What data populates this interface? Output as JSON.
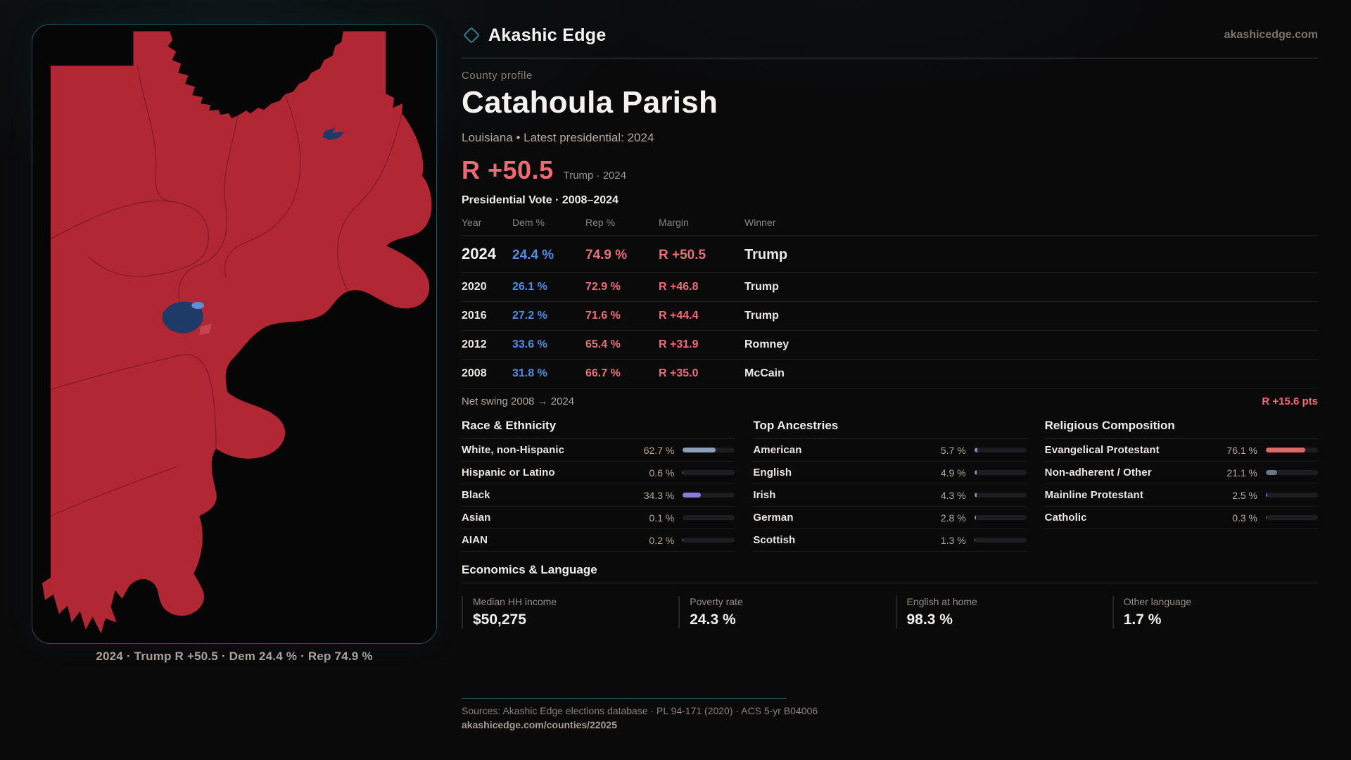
{
  "brand": {
    "name": "Akashic Edge",
    "domain": "akashicedge.com"
  },
  "map": {
    "caption": "2024 · Trump R +50.5 · Dem 24.4 % · Rep 74.9 %"
  },
  "profile": {
    "eyebrow": "County profile",
    "title": "Catahoula Parish",
    "subtitle": "Louisiana • Latest presidential: 2024",
    "headline_margin": "R +50.5",
    "headline_context": "Trump · 2024",
    "table_title": "Presidential Vote · 2008–2024"
  },
  "vote_table": {
    "columns": [
      "Year",
      "Dem %",
      "Rep %",
      "Margin",
      "Winner"
    ],
    "rows": [
      {
        "year": "2024",
        "dem": "24.4 %",
        "rep": "74.9 %",
        "margin": "R +50.5",
        "winner": "Trump",
        "latest": true
      },
      {
        "year": "2020",
        "dem": "26.1 %",
        "rep": "72.9 %",
        "margin": "R +46.8",
        "winner": "Trump",
        "latest": false
      },
      {
        "year": "2016",
        "dem": "27.2 %",
        "rep": "71.6 %",
        "margin": "R +44.4",
        "winner": "Trump",
        "latest": false
      },
      {
        "year": "2012",
        "dem": "33.6 %",
        "rep": "65.4 %",
        "margin": "R +31.9",
        "winner": "Romney",
        "latest": false
      },
      {
        "year": "2008",
        "dem": "31.8 %",
        "rep": "66.7 %",
        "margin": "R +35.0",
        "winner": "McCain",
        "latest": false
      }
    ]
  },
  "net_swing": {
    "label": "Net swing 2008 → 2024",
    "value": "R +15.6 pts"
  },
  "sections": [
    {
      "title": "Race & Ethnicity",
      "rows": [
        {
          "label": "White, non-Hispanic",
          "value": "62.7 %",
          "pct": 62.7,
          "bar_color": "#8ba0b8"
        },
        {
          "label": "Hispanic or Latino",
          "value": "0.6 %",
          "pct": 0.6,
          "bar_color": "#8ba0b8"
        },
        {
          "label": "Black",
          "value": "34.3 %",
          "pct": 34.3,
          "bar_color": "#8b7ae0"
        },
        {
          "label": "Asian",
          "value": "0.1 %",
          "pct": 0.1,
          "bar_color": "#8ba0b8"
        },
        {
          "label": "AIAN",
          "value": "0.2 %",
          "pct": 0.2,
          "bar_color": "#8ba0b8"
        }
      ]
    },
    {
      "title": "Top Ancestries",
      "rows": [
        {
          "label": "American",
          "value": "5.7 %",
          "pct": 5.7,
          "bar_color": "#7d95b4"
        },
        {
          "label": "English",
          "value": "4.9 %",
          "pct": 4.9,
          "bar_color": "#7d95b4"
        },
        {
          "label": "Irish",
          "value": "4.3 %",
          "pct": 4.3,
          "bar_color": "#7d95b4"
        },
        {
          "label": "German",
          "value": "2.8 %",
          "pct": 2.8,
          "bar_color": "#7d95b4"
        },
        {
          "label": "Scottish",
          "value": "1.3 %",
          "pct": 1.3,
          "bar_color": "#7d95b4"
        }
      ]
    },
    {
      "title": "Religious Composition",
      "rows": [
        {
          "label": "Evangelical Protestant",
          "value": "76.1 %",
          "pct": 76.1,
          "bar_color": "#dd686c"
        },
        {
          "label": "Non-adherent / Other",
          "value": "21.1 %",
          "pct": 21.1,
          "bar_color": "#6b7486"
        },
        {
          "label": "Mainline Protestant",
          "value": "2.5 %",
          "pct": 2.5,
          "bar_color": "#3d7fe8"
        },
        {
          "label": "Catholic",
          "value": "0.3 %",
          "pct": 0.3,
          "bar_color": "#6b7486"
        }
      ]
    }
  ],
  "economics": {
    "title": "Economics & Language",
    "stats": [
      {
        "label": "Median HH income",
        "value": "$50,275"
      },
      {
        "label": "Poverty rate",
        "value": "24.3 %"
      },
      {
        "label": "English at home",
        "value": "98.3 %"
      },
      {
        "label": "Other language",
        "value": "1.7 %"
      }
    ]
  },
  "footer": {
    "sources": "Sources: Akashic Edge elections database · PL 94-171 (2020) · ACS 5-yr B04006",
    "permalink": "akashicedge.com/counties/22025"
  },
  "colors": {
    "accent_red": "#ee6a73",
    "dem_blue": "#4f8de2",
    "rep_red": "#ee6e76",
    "map_red": "#b12733",
    "map_navy": "#1e3a66",
    "map_light_blue": "#5b8fd9",
    "panel_teal": "#20505a"
  }
}
